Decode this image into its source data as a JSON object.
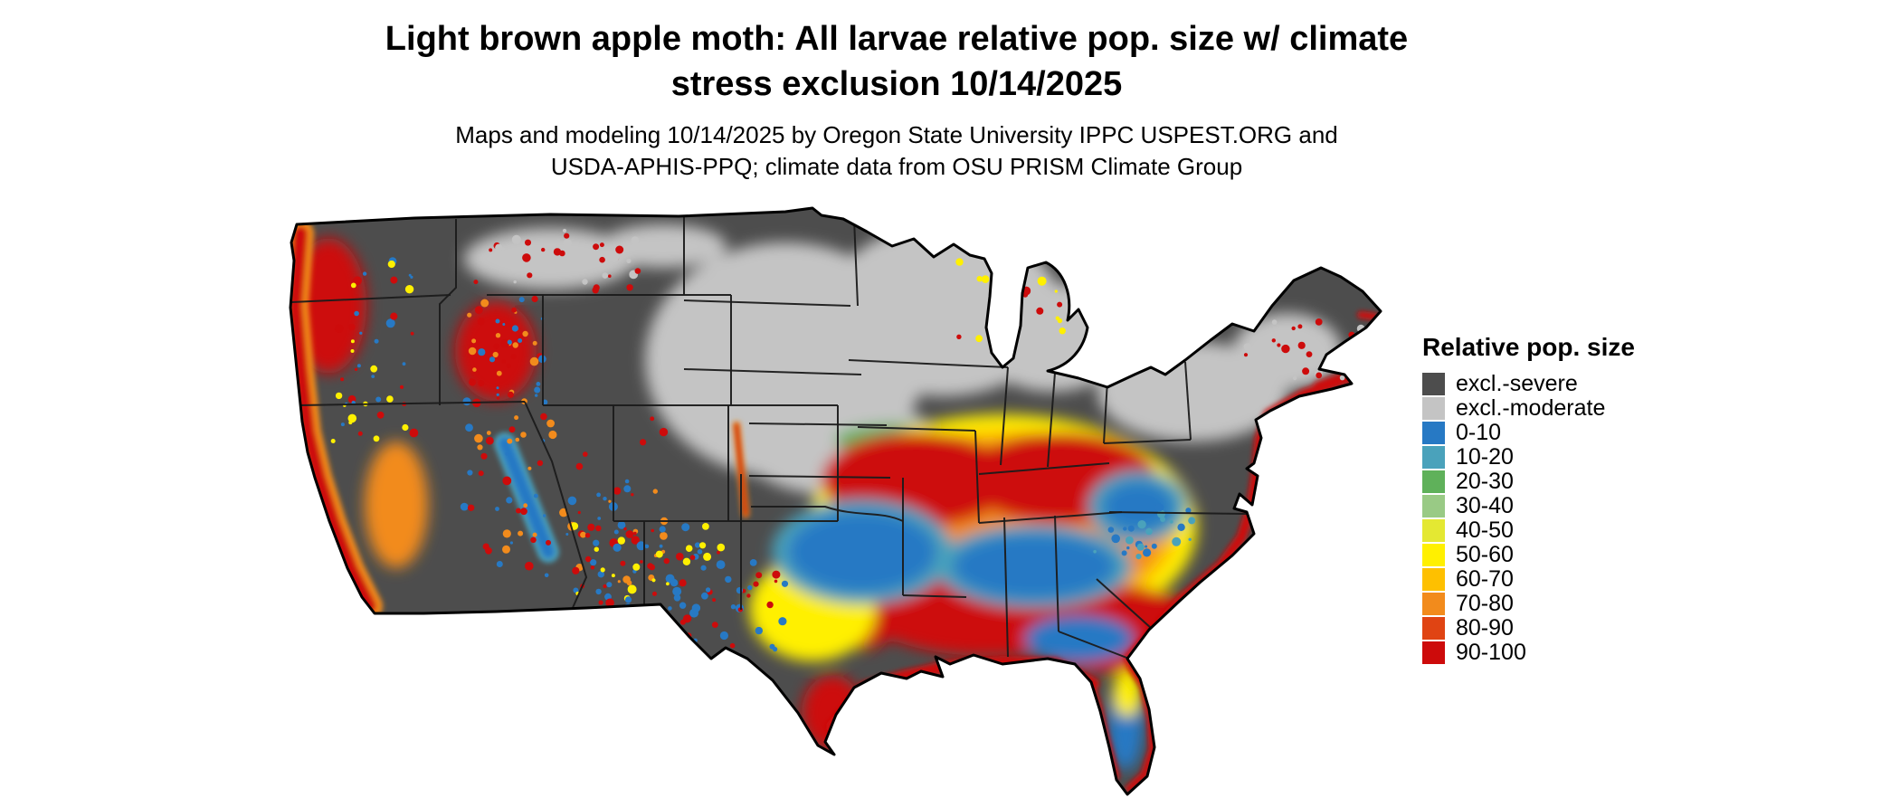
{
  "title": {
    "line1": "Light brown apple moth: All larvae relative pop. size w/ climate",
    "line2": "stress exclusion 10/14/2025"
  },
  "subtitle": {
    "line1": "Maps and modeling 10/14/2025 by Oregon State University IPPC USPEST.ORG and",
    "line2": "USDA-APHIS-PPQ; climate data from OSU PRISM Climate Group"
  },
  "legend": {
    "title": "Relative pop. size",
    "items": [
      {
        "label": "excl.-severe",
        "color": "#4d4d4d"
      },
      {
        "label": "excl.-moderate",
        "color": "#c4c4c4"
      },
      {
        "label": "0-10",
        "color": "#2779c4"
      },
      {
        "label": "10-20",
        "color": "#4aa2bb"
      },
      {
        "label": "20-30",
        "color": "#5fb15a"
      },
      {
        "label": "30-40",
        "color": "#99ca85"
      },
      {
        "label": "40-50",
        "color": "#e4e832"
      },
      {
        "label": "50-60",
        "color": "#fff000"
      },
      {
        "label": "60-70",
        "color": "#fec000"
      },
      {
        "label": "70-80",
        "color": "#f28b1c"
      },
      {
        "label": "80-90",
        "color": "#e04413"
      },
      {
        "label": "90-100",
        "color": "#cd0b0b"
      }
    ]
  }
}
